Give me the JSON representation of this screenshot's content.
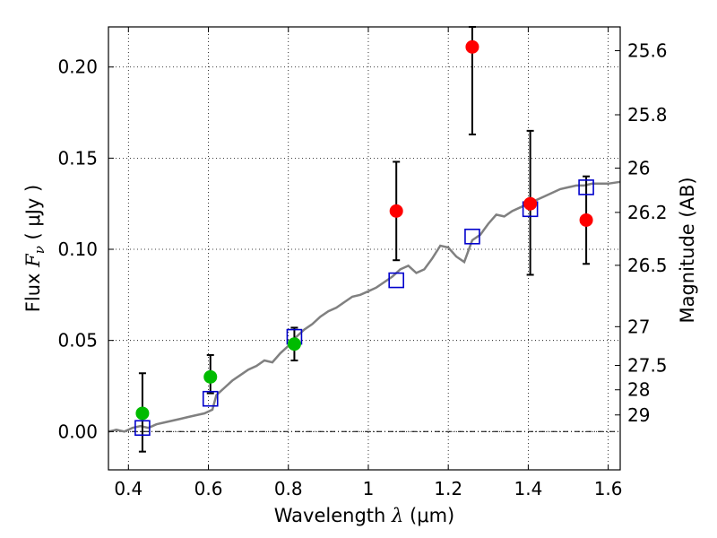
{
  "chart_data": {
    "type": "scatter",
    "title": "",
    "xlabel_parts": {
      "text": "Wavelength",
      "symbol": "λ",
      "unit": "(μm)"
    },
    "ylabel_parts": {
      "text": "Flux",
      "symbol": "F",
      "subscript": "ν",
      "unit": "( μJy )"
    },
    "y2label": "Magnitude (AB)",
    "xlim": [
      0.35,
      1.63
    ],
    "ylim": [
      -0.021,
      0.222
    ],
    "grid": true,
    "x_ticks": [
      {
        "value": 0.4,
        "label": "0.4"
      },
      {
        "value": 0.6,
        "label": "0.6"
      },
      {
        "value": 0.8,
        "label": "0.8"
      },
      {
        "value": 1.0,
        "label": "1"
      },
      {
        "value": 1.2,
        "label": "1.2"
      },
      {
        "value": 1.4,
        "label": "1.4"
      },
      {
        "value": 1.6,
        "label": "1.6"
      }
    ],
    "y_ticks": [
      {
        "value": 0.0,
        "label": "0.00"
      },
      {
        "value": 0.05,
        "label": "0.05"
      },
      {
        "value": 0.1,
        "label": "0.10"
      },
      {
        "value": 0.15,
        "label": "0.15"
      },
      {
        "value": 0.2,
        "label": "0.20"
      }
    ],
    "y2_ticks": [
      {
        "mag": 25.6,
        "label": "25.6"
      },
      {
        "mag": 25.8,
        "label": "25.8"
      },
      {
        "mag": 26.0,
        "label": "26"
      },
      {
        "mag": 26.2,
        "label": "26.2"
      },
      {
        "mag": 26.5,
        "label": "26.5"
      },
      {
        "mag": 27.0,
        "label": "27"
      },
      {
        "mag": 27.5,
        "label": "27.5"
      },
      {
        "mag": 28.0,
        "label": "28"
      },
      {
        "mag": 29.0,
        "label": "29"
      }
    ],
    "series": [
      {
        "kind": "model_line",
        "color": "#808080",
        "points": [
          [
            0.35,
            0.0
          ],
          [
            0.37,
            0.001
          ],
          [
            0.39,
            0.0
          ],
          [
            0.41,
            0.002
          ],
          [
            0.43,
            0.003
          ],
          [
            0.45,
            0.002
          ],
          [
            0.47,
            0.004
          ],
          [
            0.49,
            0.005
          ],
          [
            0.51,
            0.006
          ],
          [
            0.53,
            0.007
          ],
          [
            0.55,
            0.008
          ],
          [
            0.57,
            0.009
          ],
          [
            0.59,
            0.01
          ],
          [
            0.61,
            0.012
          ],
          [
            0.62,
            0.02
          ],
          [
            0.64,
            0.024
          ],
          [
            0.66,
            0.028
          ],
          [
            0.68,
            0.031
          ],
          [
            0.7,
            0.034
          ],
          [
            0.72,
            0.036
          ],
          [
            0.74,
            0.039
          ],
          [
            0.76,
            0.038
          ],
          [
            0.78,
            0.043
          ],
          [
            0.8,
            0.047
          ],
          [
            0.82,
            0.052
          ],
          [
            0.84,
            0.056
          ],
          [
            0.86,
            0.059
          ],
          [
            0.88,
            0.063
          ],
          [
            0.9,
            0.066
          ],
          [
            0.92,
            0.068
          ],
          [
            0.94,
            0.071
          ],
          [
            0.96,
            0.074
          ],
          [
            0.98,
            0.075
          ],
          [
            1.0,
            0.077
          ],
          [
            1.02,
            0.079
          ],
          [
            1.04,
            0.082
          ],
          [
            1.06,
            0.085
          ],
          [
            1.08,
            0.089
          ],
          [
            1.1,
            0.091
          ],
          [
            1.12,
            0.087
          ],
          [
            1.14,
            0.089
          ],
          [
            1.16,
            0.095
          ],
          [
            1.18,
            0.102
          ],
          [
            1.2,
            0.101
          ],
          [
            1.22,
            0.096
          ],
          [
            1.24,
            0.093
          ],
          [
            1.26,
            0.105
          ],
          [
            1.28,
            0.108
          ],
          [
            1.3,
            0.114
          ],
          [
            1.32,
            0.119
          ],
          [
            1.34,
            0.118
          ],
          [
            1.36,
            0.121
          ],
          [
            1.38,
            0.123
          ],
          [
            1.4,
            0.125
          ],
          [
            1.42,
            0.127
          ],
          [
            1.44,
            0.129
          ],
          [
            1.46,
            0.131
          ],
          [
            1.48,
            0.133
          ],
          [
            1.5,
            0.134
          ],
          [
            1.52,
            0.135
          ],
          [
            1.54,
            0.135
          ],
          [
            1.56,
            0.136
          ],
          [
            1.58,
            0.136
          ],
          [
            1.6,
            0.136
          ],
          [
            1.63,
            0.137
          ]
        ]
      },
      {
        "kind": "model_squares",
        "color": "#0000cc",
        "points": [
          [
            0.435,
            0.002
          ],
          [
            0.605,
            0.018
          ],
          [
            0.815,
            0.052
          ],
          [
            1.07,
            0.083
          ],
          [
            1.26,
            0.107
          ],
          [
            1.405,
            0.122
          ],
          [
            1.545,
            0.134
          ]
        ]
      },
      {
        "kind": "observed_green",
        "color": "#00bb00",
        "points": [
          {
            "x": 0.435,
            "y": 0.01,
            "err_lo": -0.011,
            "err_hi": 0.032
          },
          {
            "x": 0.605,
            "y": 0.03,
            "err_lo": 0.021,
            "err_hi": 0.042
          },
          {
            "x": 0.815,
            "y": 0.048,
            "err_lo": 0.039,
            "err_hi": 0.057
          }
        ]
      },
      {
        "kind": "observed_red",
        "color": "#ff0000",
        "points": [
          {
            "x": 1.07,
            "y": 0.121,
            "err_lo": 0.094,
            "err_hi": 0.148
          },
          {
            "x": 1.26,
            "y": 0.211,
            "err_lo": 0.163,
            "err_hi": 0.222
          },
          {
            "x": 1.405,
            "y": 0.125,
            "err_lo": 0.086,
            "err_hi": 0.165
          },
          {
            "x": 1.545,
            "y": 0.116,
            "err_lo": 0.092,
            "err_hi": 0.14
          }
        ]
      }
    ]
  }
}
